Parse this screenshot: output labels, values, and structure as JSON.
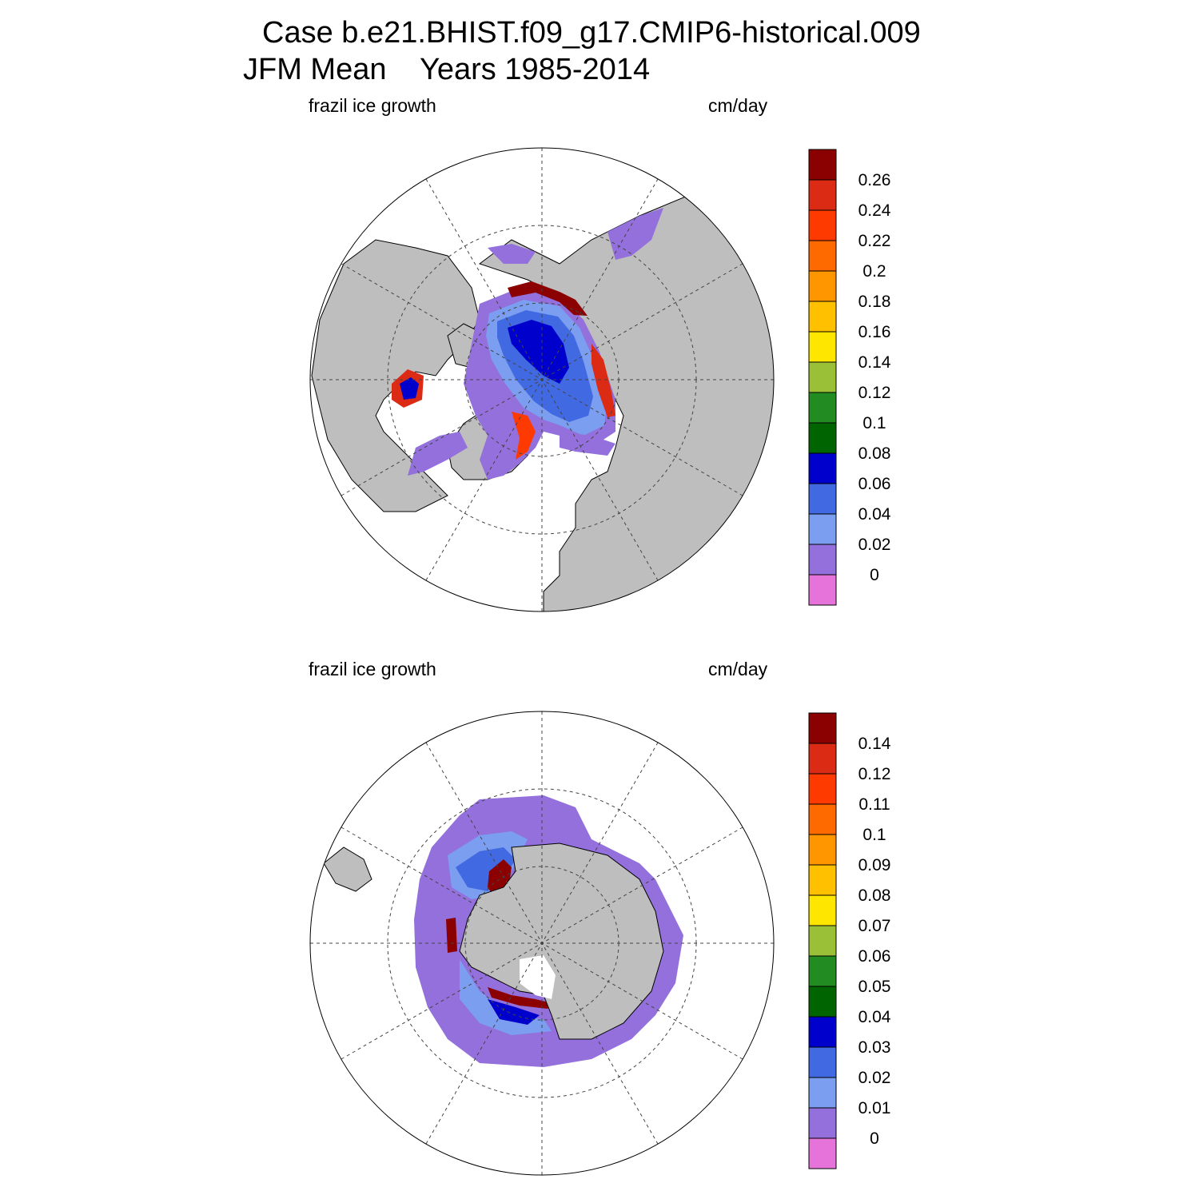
{
  "title": {
    "line1": "Case b.e21.BHIST.f09_g17.CMIP6-historical.009",
    "line2": "JFM Mean    Years 1985-2014"
  },
  "colors": {
    "land": "#bebebe",
    "ocean_nodata": "#ffffff",
    "outline": "#000000",
    "grid": "#444444"
  },
  "panels": [
    {
      "id": "north",
      "hemisphere": "Northern",
      "left_label": "frazil ice growth",
      "right_label": "cm/day",
      "colorbar": {
        "labels": [
          "0.26",
          "0.24",
          "0.22",
          "0.2",
          "0.18",
          "0.16",
          "0.14",
          "0.12",
          "0.1",
          "0.08",
          "0.06",
          "0.04",
          "0.02",
          "0"
        ],
        "colors": [
          "#8b0000",
          "#dc2b14",
          "#ff3a00",
          "#ff6a00",
          "#ff9600",
          "#ffc000",
          "#ffe600",
          "#9ac038",
          "#228b22",
          "#006400",
          "#0000cd",
          "#4169e1",
          "#7b9ef0",
          "#9370db",
          "#e673d9"
        ]
      }
    },
    {
      "id": "south",
      "hemisphere": "Southern",
      "left_label": "frazil ice growth",
      "right_label": "cm/day",
      "colorbar": {
        "labels": [
          "0.14",
          "0.12",
          "0.11",
          "0.1",
          "0.09",
          "0.08",
          "0.07",
          "0.06",
          "0.05",
          "0.04",
          "0.03",
          "0.02",
          "0.01",
          "0"
        ],
        "colors": [
          "#8b0000",
          "#dc2b14",
          "#ff3a00",
          "#ff6a00",
          "#ff9600",
          "#ffc000",
          "#ffe600",
          "#9ac038",
          "#228b22",
          "#006400",
          "#0000cd",
          "#4169e1",
          "#7b9ef0",
          "#9370db",
          "#e673d9"
        ]
      }
    }
  ]
}
